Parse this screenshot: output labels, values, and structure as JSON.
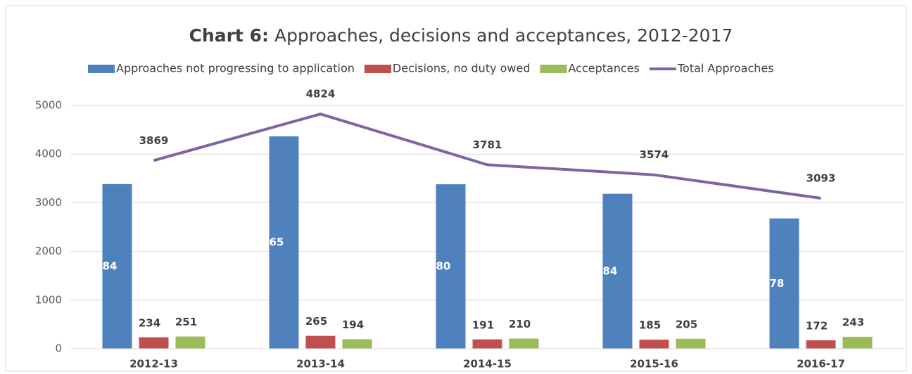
{
  "chart_data": {
    "type": "bar-line",
    "title_prefix": "Chart 6:",
    "title": "Approaches, decisions and acceptances, 2012-2017",
    "categories": [
      "2012-13",
      "2013-14",
      "2014-15",
      "2015-16",
      "2016-17"
    ],
    "series": [
      {
        "name": "Approaches not progressing to application",
        "color": "#4f81bd",
        "type": "bar",
        "values": [
          3384,
          4365,
          3380,
          3184,
          2678
        ]
      },
      {
        "name": "Decisions, no duty owed",
        "color": "#c0504d",
        "type": "bar",
        "values": [
          234,
          265,
          191,
          185,
          172
        ]
      },
      {
        "name": "Acceptances",
        "color": "#9bbb59",
        "type": "bar",
        "values": [
          251,
          194,
          210,
          205,
          243
        ]
      },
      {
        "name": "Total Approaches",
        "color": "#8064a2",
        "type": "line",
        "values": [
          3869,
          4824,
          3781,
          3574,
          3093
        ]
      }
    ],
    "ylim": [
      0,
      5000
    ],
    "yticks": [
      0,
      1000,
      2000,
      3000,
      4000,
      5000
    ],
    "grid": true,
    "legend": "top"
  }
}
